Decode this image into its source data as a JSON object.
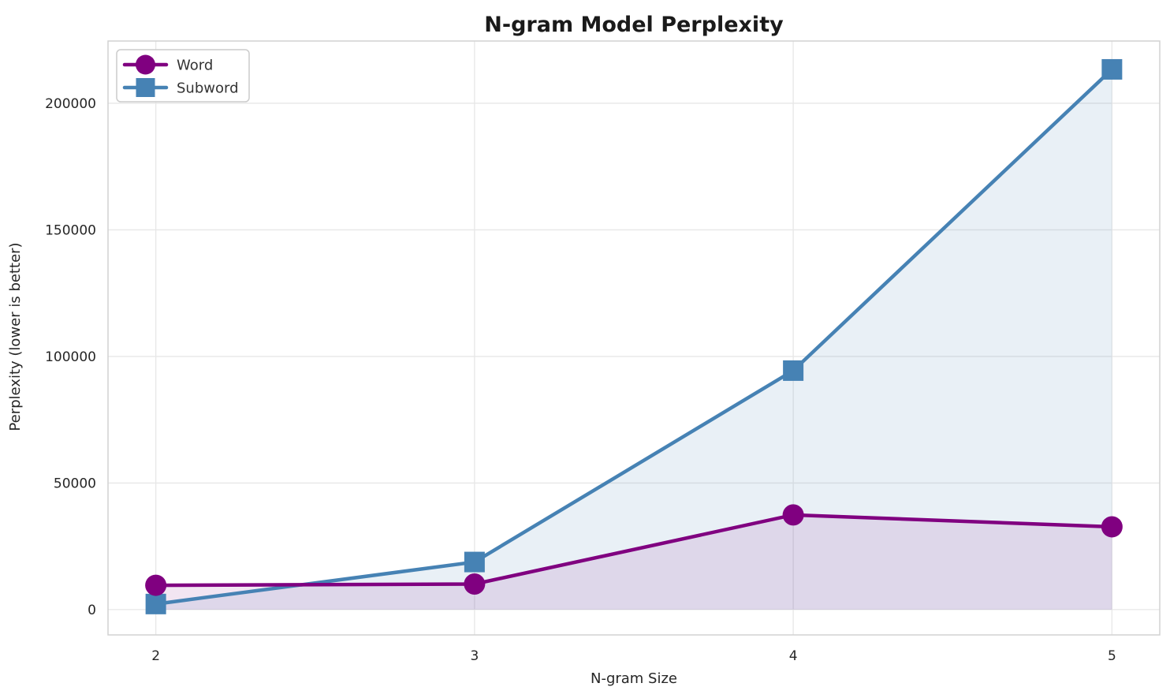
{
  "chart_data": {
    "type": "line",
    "title": "N-gram Model Perplexity",
    "xlabel": "N-gram Size",
    "ylabel": "Perplexity (lower is better)",
    "x": [
      2,
      3,
      4,
      5
    ],
    "xtick_labels": [
      "2",
      "3",
      "4",
      "5"
    ],
    "yticks": [
      0,
      50000,
      100000,
      150000,
      200000
    ],
    "ytick_labels": [
      "0",
      "50000",
      "100000",
      "150000",
      "200000"
    ],
    "xlim": [
      1.85,
      5.15
    ],
    "ylim": [
      -10000,
      224600
    ],
    "grid": true,
    "legend_position": "upper-left",
    "area_fill_baseline": 0,
    "series": [
      {
        "name": "Word",
        "marker": "circle",
        "color": "#800080",
        "fill_opacity": 0.1,
        "values": [
          9600,
          10100,
          37400,
          32700
        ]
      },
      {
        "name": "Subword",
        "marker": "square",
        "color": "#4682B4",
        "fill_opacity": 0.12,
        "values": [
          2200,
          18800,
          94400,
          213400
        ]
      }
    ]
  },
  "styles": {
    "background": "#ffffff",
    "grid_color": "#e7e7e7",
    "spine_color": "#d2d2d2",
    "tick_color": "#262626",
    "title_color": "#1a1a1a",
    "legend_border": "#cccccc",
    "legend_background": "#ffffff"
  }
}
